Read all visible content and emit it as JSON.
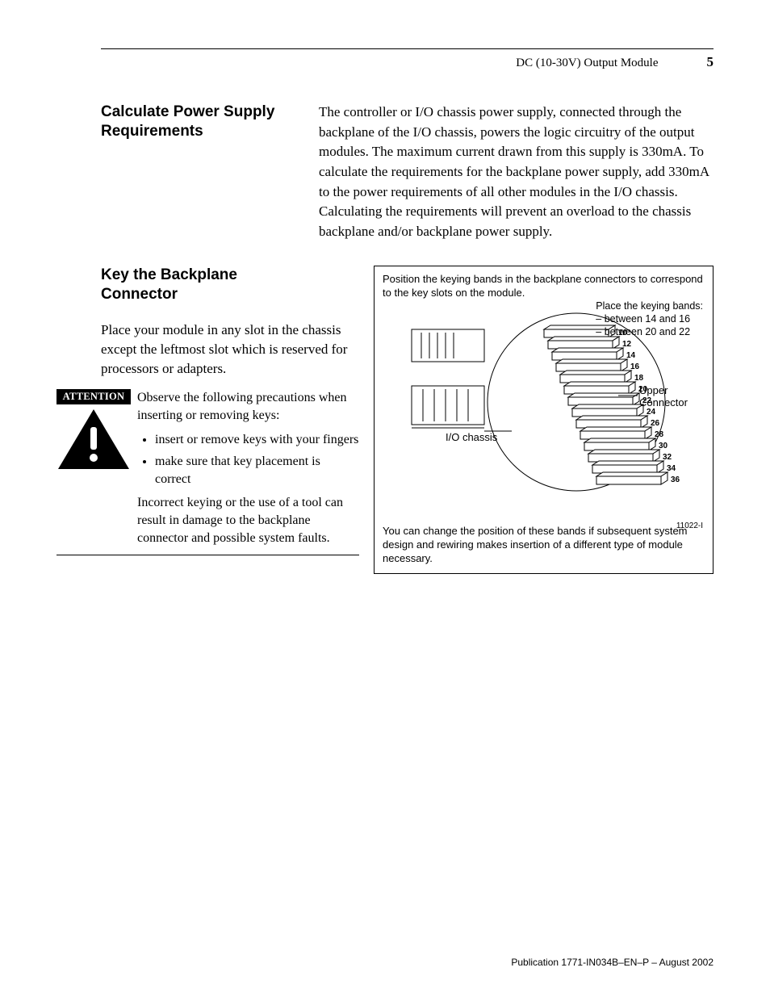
{
  "header": {
    "doc_title": "DC (10-30V) Output Module",
    "page_number": "5"
  },
  "section1": {
    "heading": "Calculate Power Supply Requirements",
    "body": "The controller or I/O chassis power supply, connected through the backplane of the I/O chassis, powers the logic circuitry of the output modules. The maximum current drawn  from this supply is 330mA. To calculate the requirements for the backplane power supply, add 330mA to the power requirements of all other modules in the I/O chassis. Calculating the requirements will prevent an overload to the chassis backplane and/or backplane power supply."
  },
  "section2": {
    "heading": "Key the Backplane Connector",
    "intro": "Place your module in any slot in the chassis except the leftmost slot which is reserved for processors or adapters.",
    "attention": {
      "label": "ATTENTION",
      "lead": "Observe the following precautions when inserting or removing keys:",
      "items": [
        "insert or remove keys with your fingers",
        "make sure that key placement is correct"
      ],
      "tail": "Incorrect keying or the use of a tool can result in damage to the backplane connector and possible system faults."
    },
    "figure": {
      "top_text": "Position the keying bands in the backplane connectors to correspond to the key slots on the module.",
      "bands_title": "Place the keying bands:",
      "bands_line1": "– between 14 and 16",
      "bands_line2": "– between 20 and 22",
      "chassis_label": "I/O chassis",
      "connector_label_1": "Upper",
      "connector_label_2": "Connector",
      "pin_numbers": [
        "10",
        "12",
        "14",
        "16",
        "18",
        "20",
        "22",
        "24",
        "26",
        "28",
        "30",
        "32",
        "34",
        "36"
      ],
      "bottom_text": "You can change the position of these bands if subsequent system design and rewiring makes insertion of a different type of module necessary.",
      "fig_id": "11022-I"
    }
  },
  "footer": {
    "publication": "Publication 1771-IN034B–EN–P – August 2002"
  }
}
